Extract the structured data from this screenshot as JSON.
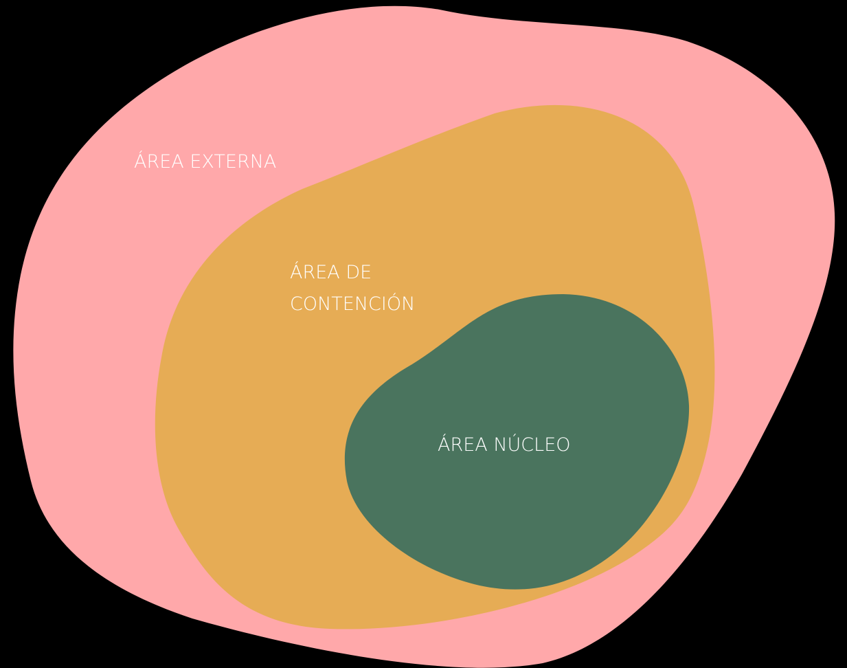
{
  "areas": [
    {
      "label": "ÁREA EXTERNA"
    },
    {
      "label": "ÁREA DE",
      "label2": "CONTENCIÓN"
    },
    {
      "label": "ÁREA NÚCLEO"
    }
  ]
}
